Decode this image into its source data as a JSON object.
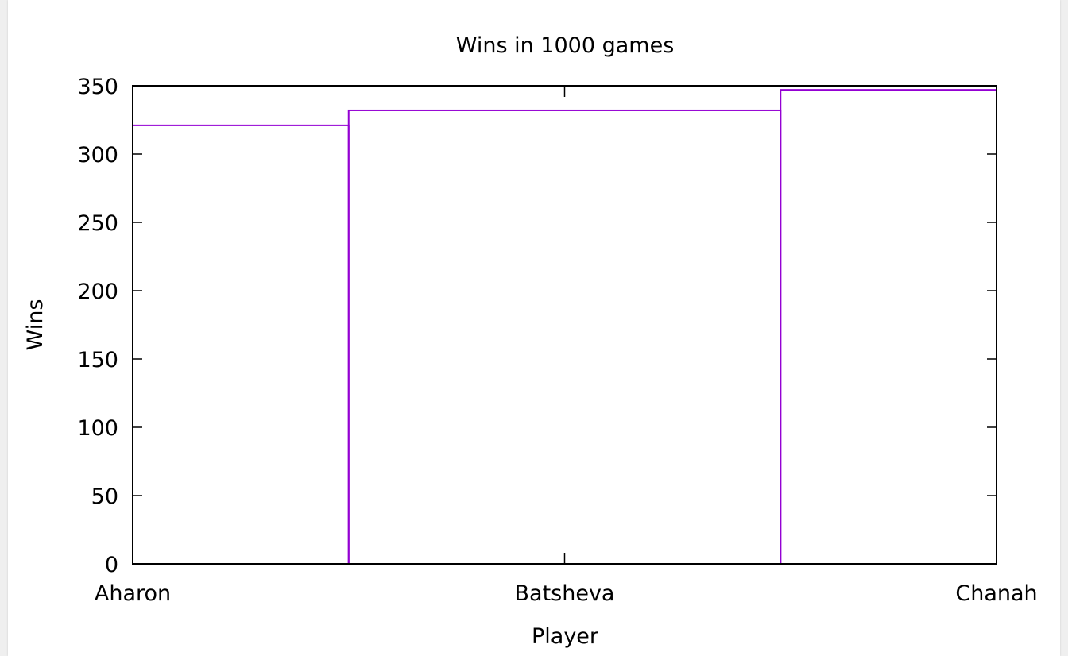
{
  "colors": {
    "series": "#9400d3",
    "axis": "#000000",
    "page_background": "#efefef",
    "plot_background": "#ffffff"
  },
  "chart_data": {
    "type": "bar",
    "style": "step-histogram",
    "title": "Wins in 1000 games",
    "xlabel": "Player",
    "ylabel": "Wins",
    "categories": [
      "Aharon",
      "Batsheva",
      "Chanah"
    ],
    "values": [
      321,
      332,
      347
    ],
    "ylim": [
      0,
      350
    ],
    "yticks": [
      0,
      50,
      100,
      150,
      200,
      250,
      300,
      350
    ],
    "grid": false,
    "legend": "none"
  }
}
